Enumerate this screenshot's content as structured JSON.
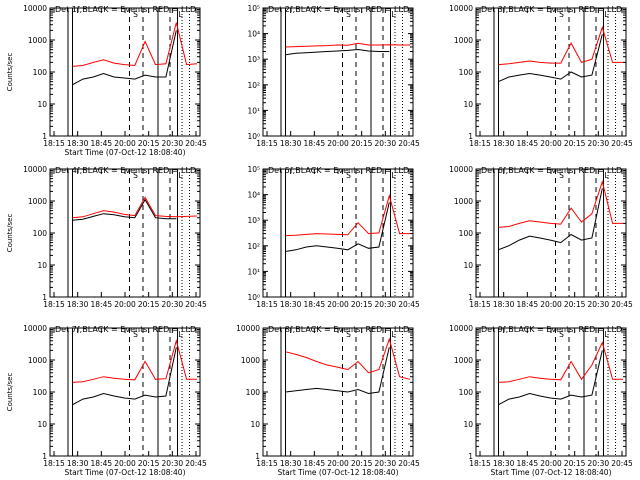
{
  "chart_data": [
    {
      "type": "line",
      "title": "Det 1f,BLACK = Events, RED = LLD",
      "xlabel": "Start Time (07-Oct-12 18:08:40)",
      "ylabel": "Counts/sec",
      "ytick_labels": [
        "1",
        "10",
        "100",
        "1000",
        "10000"
      ],
      "yscale": "log",
      "ylim": [
        1,
        10000
      ],
      "xtick_labels": [
        "18:15",
        "18:30",
        "18:45",
        "20:00",
        "20:15",
        "20:30",
        "20:45"
      ],
      "markers": [
        "S",
        "L"
      ],
      "series": [
        {
          "color": "#ff0000",
          "values": [
            150,
            160,
            200,
            240,
            190,
            170,
            160,
            900,
            170,
            180,
            3500,
            170,
            180
          ]
        },
        {
          "color": "#000000",
          "values": [
            40,
            60,
            70,
            90,
            70,
            65,
            60,
            80,
            70,
            70,
            2000,
            0,
            0
          ]
        }
      ]
    },
    {
      "type": "line",
      "title": "Det 2f,BLACK = Events, RED = LLD",
      "xlabel": "",
      "ylabel": "",
      "ytick_labels": [
        "10⁰",
        "10¹",
        "10²",
        "10³",
        "10⁴",
        "10⁵"
      ],
      "yscale": "log",
      "ylim": [
        1,
        100000
      ],
      "xtick_labels": [
        "18:15",
        "18:30",
        "18:45",
        "20:00",
        "20:15",
        "20:30",
        "20:45"
      ],
      "markers": [
        "S",
        "L"
      ],
      "series": [
        {
          "color": "#ff0000",
          "values": [
            3000,
            3100,
            3200,
            3300,
            3400,
            3600,
            3500,
            4200,
            3600,
            3600,
            3700,
            3600,
            3600
          ]
        },
        {
          "color": "#000000",
          "values": [
            1500,
            1700,
            1800,
            1900,
            2000,
            2100,
            2200,
            2400,
            2100,
            2000,
            2000,
            0,
            0
          ]
        }
      ]
    },
    {
      "type": "line",
      "title": "Det 3f,BLACK = Events, RED = LLD",
      "xlabel": "",
      "ylabel": "",
      "ytick_labels": [
        "1",
        "10",
        "100",
        "1000",
        "10000"
      ],
      "yscale": "log",
      "ylim": [
        1,
        10000
      ],
      "xtick_labels": [
        "18:15",
        "18:30",
        "18:45",
        "20:00",
        "20:15",
        "20:30",
        "20:45"
      ],
      "markers": [
        "S",
        "L"
      ],
      "series": [
        {
          "color": "#ff0000",
          "values": [
            170,
            180,
            200,
            220,
            200,
            190,
            190,
            800,
            200,
            250,
            2500,
            200,
            200
          ]
        },
        {
          "color": "#000000",
          "values": [
            50,
            70,
            80,
            90,
            80,
            70,
            60,
            100,
            70,
            80,
            1500,
            0,
            0
          ]
        }
      ]
    },
    {
      "type": "line",
      "title": "Det 4f,BLACK = Events, RED = LLD",
      "xlabel": "",
      "ylabel": "Counts/sec",
      "ytick_labels": [
        "1",
        "10",
        "100",
        "1000",
        "10000"
      ],
      "yscale": "log",
      "ylim": [
        1,
        10000
      ],
      "xtick_labels": [
        "18:15",
        "18:30",
        "18:45",
        "20:00",
        "20:15",
        "20:30",
        "20:45"
      ],
      "markers": [
        "S",
        "L"
      ],
      "series": [
        {
          "color": "#ff0000",
          "values": [
            300,
            320,
            400,
            500,
            450,
            380,
            350,
            1300,
            350,
            330,
            320,
            330,
            340
          ]
        },
        {
          "color": "#000000",
          "values": [
            250,
            270,
            330,
            400,
            370,
            320,
            300,
            1100,
            300,
            280,
            280,
            0,
            0
          ]
        }
      ]
    },
    {
      "type": "line",
      "title": "Det 5f,BLACK = Events, RED = LLD",
      "xlabel": "",
      "ylabel": "",
      "ytick_labels": [
        "10⁰",
        "10¹",
        "10²",
        "10³",
        "10⁴",
        "10⁵"
      ],
      "yscale": "log",
      "ylim": [
        1,
        100000
      ],
      "xtick_labels": [
        "18:15",
        "18:30",
        "18:45",
        "20:00",
        "20:15",
        "20:30",
        "20:45"
      ],
      "markers": [
        "S",
        "L"
      ],
      "series": [
        {
          "color": "#ff0000",
          "values": [
            250,
            260,
            280,
            300,
            290,
            280,
            270,
            800,
            300,
            320,
            9000,
            300,
            300
          ]
        },
        {
          "color": "#000000",
          "values": [
            60,
            70,
            90,
            100,
            90,
            80,
            70,
            120,
            80,
            90,
            5000,
            0,
            0
          ]
        }
      ]
    },
    {
      "type": "line",
      "title": "Det 6f,BLACK = Events, RED = LLD",
      "xlabel": "",
      "ylabel": "",
      "ytick_labels": [
        "1",
        "10",
        "100",
        "1000",
        "10000"
      ],
      "yscale": "log",
      "ylim": [
        1,
        10000
      ],
      "xtick_labels": [
        "18:15",
        "18:30",
        "18:45",
        "20:00",
        "20:15",
        "20:30",
        "20:45"
      ],
      "markers": [
        "S",
        "L"
      ],
      "series": [
        {
          "color": "#ff0000",
          "values": [
            150,
            160,
            200,
            240,
            220,
            200,
            190,
            600,
            220,
            400,
            4000,
            200,
            200
          ]
        },
        {
          "color": "#000000",
          "values": [
            30,
            40,
            60,
            80,
            70,
            60,
            50,
            90,
            60,
            70,
            2500,
            0,
            0
          ]
        }
      ]
    },
    {
      "type": "line",
      "title": "Det 7f,BLACK = Events, RED = LLD",
      "xlabel": "Start Time (07-Oct-12 18:08:40)",
      "ylabel": "Counts/sec",
      "ytick_labels": [
        "1",
        "10",
        "100",
        "1000",
        "10000"
      ],
      "yscale": "log",
      "ylim": [
        1,
        10000
      ],
      "xtick_labels": [
        "18:15",
        "18:30",
        "18:45",
        "20:00",
        "20:15",
        "20:30",
        "20:45"
      ],
      "markers": [
        "S",
        "L"
      ],
      "series": [
        {
          "color": "#ff0000",
          "values": [
            200,
            210,
            250,
            300,
            270,
            250,
            240,
            900,
            250,
            260,
            4000,
            250,
            250
          ]
        },
        {
          "color": "#000000",
          "values": [
            40,
            60,
            70,
            90,
            75,
            65,
            60,
            80,
            70,
            75,
            2500,
            0,
            0
          ]
        }
      ]
    },
    {
      "type": "line",
      "title": "Det 8f,BLACK = Events, RED = LLD",
      "xlabel": "Start Time (07-Oct-12 18:08:40)",
      "ylabel": "",
      "ytick_labels": [
        "1",
        "10",
        "100",
        "1000",
        "10000"
      ],
      "yscale": "log",
      "ylim": [
        1,
        10000
      ],
      "xtick_labels": [
        "18:15",
        "18:30",
        "18:45",
        "20:00",
        "20:15",
        "20:30",
        "20:45"
      ],
      "markers": [
        "S",
        "L"
      ],
      "series": [
        {
          "color": "#ff0000",
          "values": [
            1800,
            1500,
            1200,
            900,
            700,
            600,
            500,
            900,
            400,
            500,
            4500,
            300,
            250
          ]
        },
        {
          "color": "#000000",
          "values": [
            100,
            110,
            120,
            130,
            120,
            110,
            100,
            120,
            90,
            100,
            2500,
            0,
            0
          ]
        }
      ]
    },
    {
      "type": "line",
      "title": "Det 9f,BLACK = Events, RED = LLD",
      "xlabel": "Start Time (07-Oct-12 18:08:40)",
      "ylabel": "",
      "ytick_labels": [
        "1",
        "10",
        "100",
        "1000",
        "10000"
      ],
      "yscale": "log",
      "ylim": [
        1,
        10000
      ],
      "xtick_labels": [
        "18:15",
        "18:30",
        "18:45",
        "20:00",
        "20:15",
        "20:30",
        "20:45"
      ],
      "markers": [
        "S",
        "L"
      ],
      "series": [
        {
          "color": "#ff0000",
          "values": [
            200,
            210,
            250,
            300,
            270,
            250,
            240,
            900,
            250,
            700,
            3500,
            250,
            250
          ]
        },
        {
          "color": "#000000",
          "values": [
            40,
            60,
            70,
            90,
            75,
            65,
            60,
            80,
            70,
            80,
            2000,
            0,
            0
          ]
        }
      ]
    }
  ]
}
